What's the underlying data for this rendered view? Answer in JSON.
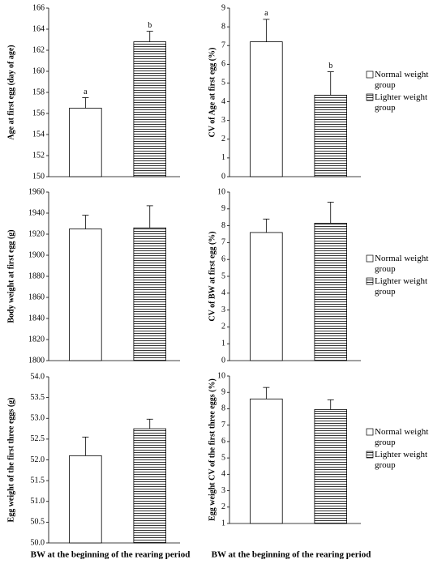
{
  "chart_data": [
    {
      "type": "bar",
      "ylabel": "Age at first egg  (day of age)",
      "categories": [
        null
      ],
      "ylim": [
        150,
        166
      ],
      "yticks": [
        150,
        152,
        154,
        156,
        158,
        160,
        162,
        164,
        166
      ],
      "series": [
        {
          "color": "#ffffff",
          "pattern": "none",
          "values": [
            156.5
          ],
          "errors": [
            1.0
          ],
          "letters": [
            "a"
          ]
        },
        {
          "color": "#ffffff",
          "pattern": "horizontal-lines",
          "values": [
            162.8
          ],
          "errors": [
            1.0
          ],
          "letters": [
            "b"
          ]
        }
      ]
    },
    {
      "type": "bar",
      "ylabel": "CV of Age at first egg (%)",
      "categories": [
        null
      ],
      "ylim": [
        0,
        9
      ],
      "yticks": [
        0,
        1,
        2,
        3,
        4,
        5,
        6,
        7,
        8,
        9
      ],
      "legend": "right",
      "series": [
        {
          "name": "Normal weight group",
          "color": "#ffffff",
          "pattern": "none",
          "values": [
            7.2
          ],
          "errors": [
            1.2
          ],
          "letters": [
            "a"
          ]
        },
        {
          "name": "Lighter weight group",
          "color": "#ffffff",
          "pattern": "horizontal-lines",
          "values": [
            4.35
          ],
          "errors": [
            1.25
          ],
          "letters": [
            "b"
          ]
        }
      ]
    },
    {
      "type": "bar",
      "ylabel": "Body weight at first egg  (g)",
      "categories": [
        null
      ],
      "ylim": [
        1800,
        1960
      ],
      "yticks": [
        1800,
        1820,
        1840,
        1860,
        1880,
        1900,
        1920,
        1940,
        1960
      ],
      "series": [
        {
          "color": "#ffffff",
          "pattern": "none",
          "values": [
            1925
          ],
          "errors": [
            13
          ]
        },
        {
          "color": "#ffffff",
          "pattern": "horizontal-lines",
          "values": [
            1926
          ],
          "errors": [
            21
          ]
        }
      ]
    },
    {
      "type": "bar",
      "ylabel": "CV of BW at first egg (%)",
      "categories": [
        null
      ],
      "ylim": [
        0,
        10
      ],
      "yticks": [
        0,
        1,
        2,
        3,
        4,
        5,
        6,
        7,
        8,
        9,
        10
      ],
      "legend": "right",
      "series": [
        {
          "name": "Normal weight group",
          "color": "#ffffff",
          "pattern": "none",
          "values": [
            7.6
          ],
          "errors": [
            0.8
          ]
        },
        {
          "name": "Lighter weight group",
          "color": "#ffffff",
          "pattern": "horizontal-lines",
          "values": [
            8.15
          ],
          "errors": [
            1.25
          ]
        }
      ]
    },
    {
      "type": "bar",
      "ylabel": "Egg weight of the first three eggs (g)",
      "xlabel": "BW at the beginning of the rearing period",
      "categories": [
        null
      ],
      "ylim": [
        50,
        54
      ],
      "yticks": [
        {
          "value": 50,
          "label": "50.0"
        },
        {
          "value": 50.5,
          "label": "50.5"
        },
        {
          "value": 51,
          "label": "51.0"
        },
        {
          "value": 51.5,
          "label": "51.5"
        },
        {
          "value": 52,
          "label": "52.0"
        },
        {
          "value": 52.5,
          "label": "52.5"
        },
        {
          "value": 53,
          "label": "53.0"
        },
        {
          "value": 53.5,
          "label": "53.5"
        },
        {
          "value": 54,
          "label": "54.0"
        }
      ],
      "series": [
        {
          "color": "#ffffff",
          "pattern": "none",
          "values": [
            52.1
          ],
          "errors": [
            0.45
          ]
        },
        {
          "color": "#ffffff",
          "pattern": "horizontal-lines",
          "values": [
            52.75
          ],
          "errors": [
            0.23
          ]
        }
      ]
    },
    {
      "type": "bar",
      "ylabel": "Egg weight CV of the first three eggs (%)",
      "xlabel": "BW at the beginning of the rearing period",
      "categories": [
        null
      ],
      "ylim": [
        1,
        10
      ],
      "yticks": [
        1,
        2,
        3,
        4,
        5,
        6,
        7,
        8,
        9,
        10
      ],
      "legend": "right",
      "series": [
        {
          "name": "Normal weight group",
          "color": "#ffffff",
          "pattern": "none",
          "values": [
            8.6
          ],
          "errors": [
            0.7
          ]
        },
        {
          "name": "Lighter weight group",
          "color": "#ffffff",
          "pattern": "horizontal-lines",
          "values": [
            7.95
          ],
          "errors": [
            0.6
          ]
        }
      ]
    }
  ]
}
